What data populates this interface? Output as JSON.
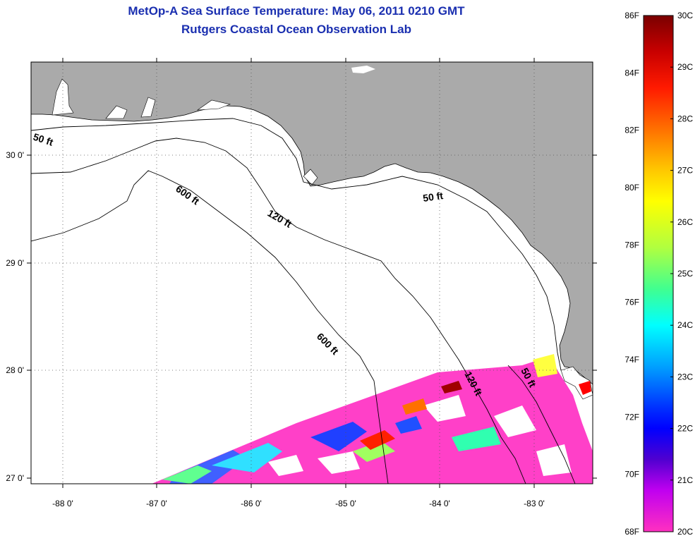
{
  "header": {
    "title": "MetOp-A Sea Surface Temperature:  May 06, 2011 0210 GMT",
    "subtitle": "Rutgers Coastal Ocean Observation Lab"
  },
  "map": {
    "lon_labels": [
      "-88 0'",
      "-87 0'",
      "-86 0'",
      "-85 0'",
      "-84 0'",
      "-83 0'"
    ],
    "lat_labels": [
      "30 0'",
      "29 0'",
      "28 0'",
      "27 0'"
    ],
    "contour_labels": [
      "50 ft",
      "600 ft",
      "120 ft",
      "50 ft",
      "600 ft",
      "120 ft",
      "50 ft"
    ],
    "land_color": "#aaaaaa",
    "ocean_color": "#ffffff"
  },
  "colorbar": {
    "fahrenheit_labels": [
      "86F",
      "84F",
      "82F",
      "80F",
      "78F",
      "76F",
      "74F",
      "72F",
      "70F",
      "68F"
    ],
    "celsius_labels": [
      "30C",
      "29C",
      "28C",
      "27C",
      "26C",
      "25C",
      "24C",
      "23C",
      "22C",
      "21C",
      "20C"
    ],
    "colors_top_to_bottom": [
      "#7a0000",
      "#cc0000",
      "#ff2a00",
      "#ff8000",
      "#ffd000",
      "#ffff00",
      "#c8ff30",
      "#50ff80",
      "#00ffff",
      "#00a0ff",
      "#0000ff",
      "#4000d0",
      "#a000e0",
      "#ff00ff",
      "#ff30c0"
    ]
  }
}
